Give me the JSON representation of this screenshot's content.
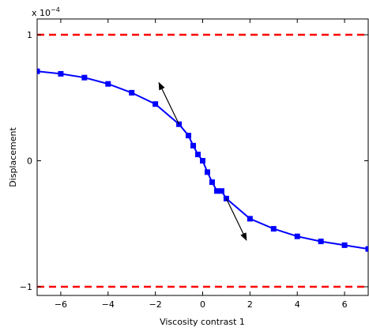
{
  "chart_data": {
    "type": "line",
    "xlabel": "Viscosity contrast 1",
    "ylabel": "Displacement",
    "xlim": [
      -7,
      7
    ],
    "ylim": [
      -1.1,
      1.1
    ],
    "y_scale_label": "x 10",
    "y_scale_exponent": "−4",
    "xticks": [
      -6,
      -4,
      -2,
      0,
      2,
      4,
      6
    ],
    "xtick_labels": [
      "−6",
      "−4",
      "−2",
      "0",
      "2",
      "4",
      "6"
    ],
    "yticks": [
      -1,
      0,
      1
    ],
    "ytick_labels": [
      "−1",
      "0",
      "1"
    ],
    "grid": false,
    "legend": "none",
    "series": [
      {
        "color": "#0000ff",
        "marker": "square",
        "x": [
          -7,
          -6,
          -5,
          -4,
          -3,
          -2,
          -1,
          -0.6,
          -0.4,
          -0.2,
          0,
          0.2,
          0.4,
          0.6,
          0.8,
          1,
          2,
          3,
          4,
          5,
          6,
          7
        ],
        "y": [
          0.71,
          0.69,
          0.66,
          0.61,
          0.54,
          0.45,
          0.29,
          0.2,
          0.12,
          0.05,
          0.0,
          -0.09,
          -0.17,
          -0.24,
          -0.24,
          -0.3,
          -0.46,
          -0.54,
          -0.6,
          -0.64,
          -0.67,
          -0.7
        ]
      }
    ],
    "reference_lines": [
      {
        "y": 1,
        "color": "#ff0000",
        "style": "dashed"
      },
      {
        "y": -1,
        "color": "#ff0000",
        "style": "dashed"
      }
    ],
    "arrows": [
      {
        "from": [
          -1,
          0.29
        ],
        "to": [
          -1.85,
          0.62
        ]
      },
      {
        "from": [
          1,
          -0.3
        ],
        "to": [
          1.85,
          -0.63
        ]
      }
    ]
  }
}
